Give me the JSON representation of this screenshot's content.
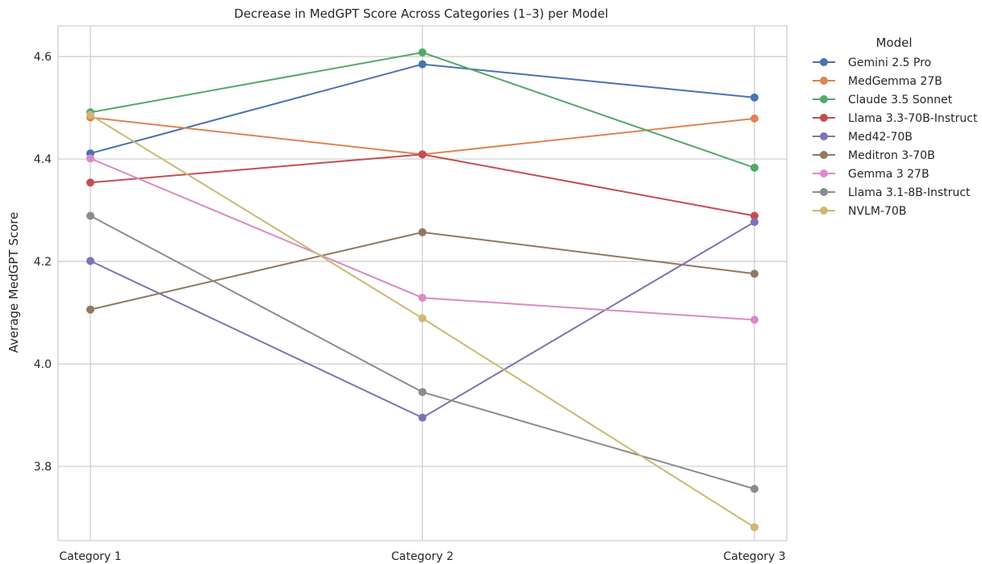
{
  "chart_data": {
    "type": "line",
    "title": "Decrease in MedGPT Score Across Categories (1–3) per Model",
    "xlabel": "",
    "ylabel": "Average MedGPT Score",
    "categories": [
      "Category 1",
      "Category 2",
      "Category 3"
    ],
    "ylim": [
      3.655,
      4.66
    ],
    "yticks": [
      "3.8",
      "4.0",
      "4.2",
      "4.4",
      "4.6"
    ],
    "grid": true,
    "legend": {
      "title": "Model",
      "placement": "outside-right"
    },
    "series": [
      {
        "name": "Gemini 2.5 Pro",
        "color": "#4c72b0",
        "values": [
          4.411,
          4.585,
          4.52
        ]
      },
      {
        "name": "MedGemma 27B",
        "color": "#dd8452",
        "values": [
          4.481,
          4.409,
          4.479
        ]
      },
      {
        "name": "Claude 3.5 Sonnet",
        "color": "#55a868",
        "values": [
          4.491,
          4.608,
          4.383
        ]
      },
      {
        "name": "Llama 3.3-70B-Instruct",
        "color": "#c44e52",
        "values": [
          4.354,
          4.409,
          4.289
        ]
      },
      {
        "name": "Med42-70B",
        "color": "#8172b3",
        "values": [
          4.201,
          3.895,
          4.277
        ]
      },
      {
        "name": "Meditron 3-70B",
        "color": "#937860",
        "values": [
          4.106,
          4.257,
          4.176
        ]
      },
      {
        "name": "Gemma 3 27B",
        "color": "#da8bc3",
        "values": [
          4.401,
          4.129,
          4.086
        ]
      },
      {
        "name": "Llama 3.1-8B-Instruct",
        "color": "#8c8c8c",
        "values": [
          4.289,
          3.945,
          3.756
        ]
      },
      {
        "name": "NVLM-70B",
        "color": "#ccb974",
        "values": [
          4.486,
          4.089,
          3.681
        ]
      }
    ]
  }
}
